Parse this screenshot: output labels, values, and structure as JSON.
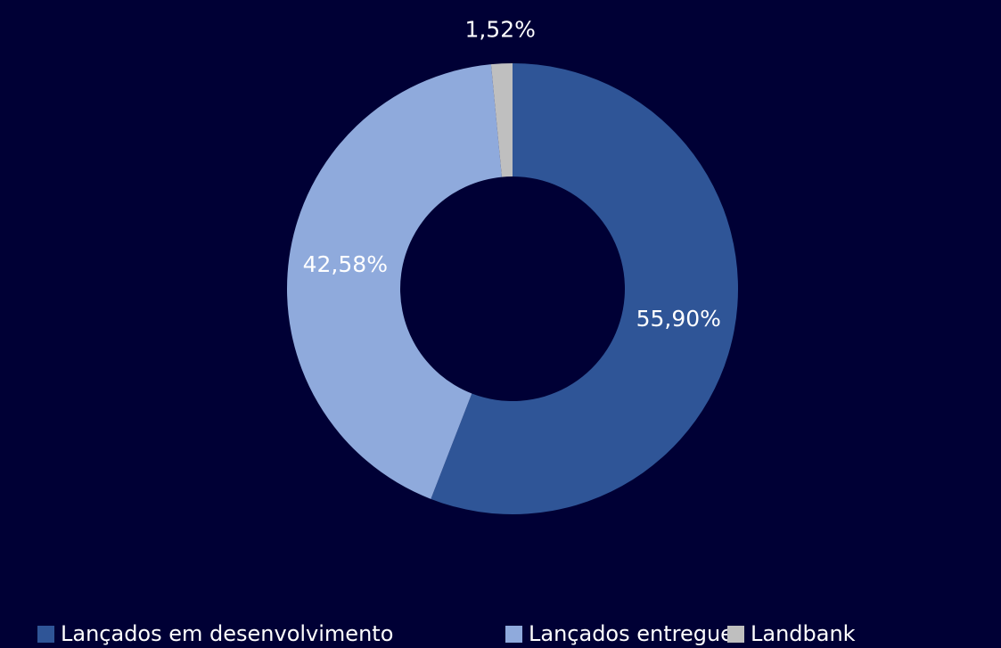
{
  "chart_data": {
    "type": "donut",
    "categories": [
      "Lançados em desenvolvimento",
      "Lançados entregues",
      "Landbank"
    ],
    "values": [
      55.9,
      42.58,
      1.52
    ],
    "value_labels": [
      "55,90%",
      "42,58%",
      "1,52%"
    ],
    "colors": [
      "#2f5597",
      "#8faadc",
      "#bfbfbf"
    ],
    "legend": "bottom"
  }
}
